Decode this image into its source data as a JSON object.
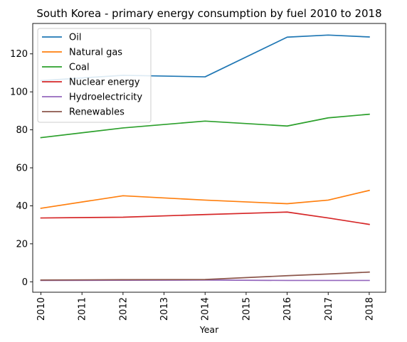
{
  "chart_data": {
    "type": "line",
    "title": "South Korea - primary energy consumption by fuel 2010 to 2018",
    "xlabel": "Year",
    "ylabel": "",
    "x": [
      2010,
      2011,
      2012,
      2013,
      2014,
      2015,
      2016,
      2017,
      2018
    ],
    "xlim": [
      2009.8,
      2018.4
    ],
    "ylim": [
      -5.5,
      136
    ],
    "yticks": [
      0,
      20,
      40,
      60,
      80,
      100,
      120
    ],
    "grid": false,
    "legend_position": "top-left",
    "series": [
      {
        "name": "Oil",
        "color": "#1f77b4",
        "points": [
          [
            2010,
            105.9
          ],
          [
            2012,
            108.7
          ],
          [
            2014,
            107.9
          ],
          [
            2016,
            128.8
          ],
          [
            2017,
            129.9
          ],
          [
            2018,
            128.9
          ]
        ]
      },
      {
        "name": "Natural gas",
        "color": "#ff7f0e",
        "points": [
          [
            2010,
            38.7
          ],
          [
            2012,
            45.3
          ],
          [
            2014,
            43.0
          ],
          [
            2016,
            41.1
          ],
          [
            2017,
            43.0
          ],
          [
            2018,
            48.1
          ]
        ]
      },
      {
        "name": "Coal",
        "color": "#2ca02c",
        "points": [
          [
            2010,
            75.9
          ],
          [
            2012,
            81.0
          ],
          [
            2014,
            84.6
          ],
          [
            2016,
            82.0
          ],
          [
            2017,
            86.3
          ],
          [
            2018,
            88.2
          ]
        ]
      },
      {
        "name": "Nuclear energy",
        "color": "#d62728",
        "points": [
          [
            2010,
            33.6
          ],
          [
            2012,
            34.0
          ],
          [
            2014,
            35.4
          ],
          [
            2016,
            36.7
          ],
          [
            2017,
            33.6
          ],
          [
            2018,
            30.2
          ]
        ]
      },
      {
        "name": "Hydroelectricity",
        "color": "#9467bd",
        "points": [
          [
            2010,
            0.7
          ],
          [
            2012,
            0.8
          ],
          [
            2014,
            0.9
          ],
          [
            2016,
            0.7
          ],
          [
            2017,
            0.7
          ],
          [
            2018,
            0.7
          ]
        ]
      },
      {
        "name": "Renewables",
        "color": "#8c564b",
        "points": [
          [
            2010,
            0.9
          ],
          [
            2012,
            1.1
          ],
          [
            2014,
            1.2
          ],
          [
            2016,
            3.2
          ],
          [
            2017,
            4.1
          ],
          [
            2018,
            5.1
          ]
        ]
      }
    ]
  }
}
